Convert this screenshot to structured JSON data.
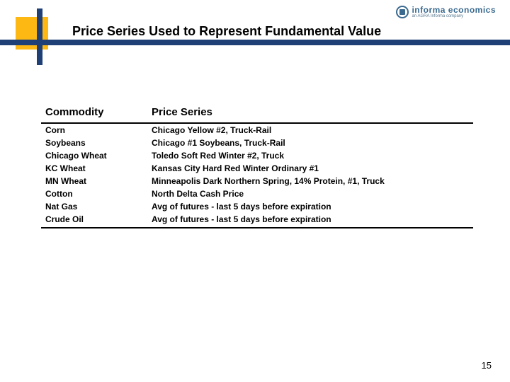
{
  "logo": {
    "main": "informa economics",
    "sub": "an AGRA Informa company"
  },
  "title": "Price Series Used to Represent Fundamental Value",
  "table": {
    "headers": {
      "commodity": "Commodity",
      "series": "Price Series"
    },
    "rows": [
      {
        "commodity": "Corn",
        "series": "Chicago Yellow #2, Truck-Rail"
      },
      {
        "commodity": "Soybeans",
        "series": "Chicago #1 Soybeans, Truck-Rail"
      },
      {
        "commodity": "Chicago Wheat",
        "series": "Toledo Soft Red Winter #2, Truck"
      },
      {
        "commodity": "KC Wheat",
        "series": "Kansas City Hard Red Winter Ordinary #1"
      },
      {
        "commodity": "MN Wheat",
        "series": "Minneapolis Dark Northern Spring, 14% Protein, #1, Truck"
      },
      {
        "commodity": "Cotton",
        "series": "North Delta Cash Price"
      },
      {
        "commodity": "Nat Gas",
        "series": "Avg of futures - last 5 days before expiration"
      },
      {
        "commodity": "Crude Oil",
        "series": "Avg of futures - last 5 days before expiration"
      }
    ]
  },
  "pageNumber": "15",
  "colors": {
    "accentYellow": "#fdb813",
    "accentBlue": "#1f3f77",
    "logoBlue": "#3a6a8f"
  }
}
